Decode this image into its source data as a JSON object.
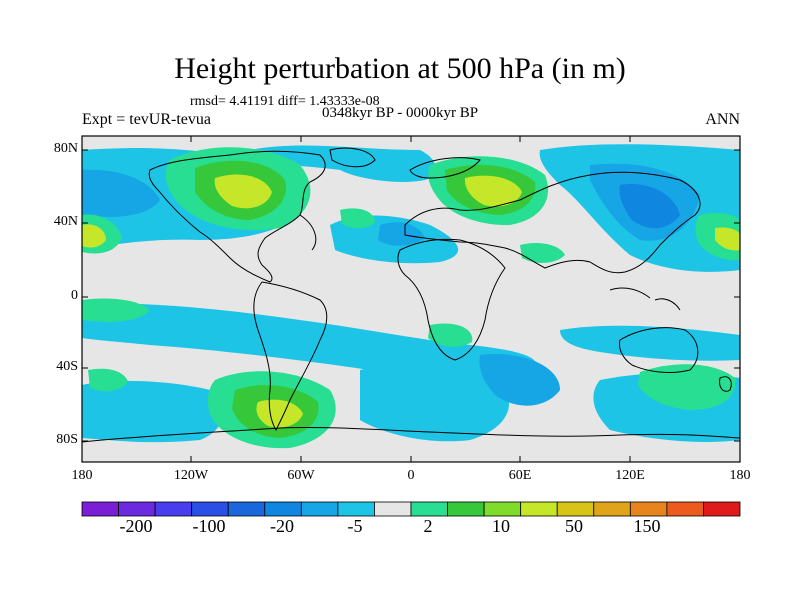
{
  "title": "Height perturbation at 500 hPa (in m)",
  "stats_line": "rmsd= 4.41191 diff= 1.43333e-08",
  "period": "0348kyr BP - 0000kyr BP",
  "experiment": "Expt = tevUR-tevua",
  "season": "ANN",
  "y_ticks": [
    "80N",
    "40N",
    "0",
    "40S",
    "80S"
  ],
  "x_ticks": [
    "180",
    "120W",
    "60W",
    "0",
    "60E",
    "120E",
    "180"
  ],
  "colorbar": {
    "colors": [
      "#7a1fd6",
      "#6b2ae0",
      "#4a3df0",
      "#2a4fe6",
      "#1a66dc",
      "#0f86e0",
      "#16a6e6",
      "#1ec4e6",
      "#e6e6e6",
      "#27de92",
      "#36c83a",
      "#7fdc2a",
      "#c6e62a",
      "#d8c418",
      "#e0a41a",
      "#e8841e",
      "#ec5a1e",
      "#e01a1a"
    ],
    "labels": [
      "-200",
      "-100",
      "-20",
      "-5",
      "2",
      "10",
      "50",
      "150"
    ]
  },
  "palette": {
    "background": "#e6e6e6",
    "neg_light": "#1ec4e6",
    "neg_mid": "#16a6e6",
    "neg_dark": "#0f86e0",
    "neg_deep": "#1a66dc",
    "pos_light": "#27de92",
    "pos_mid": "#36c83a",
    "pos_yellow": "#c6e62a"
  }
}
